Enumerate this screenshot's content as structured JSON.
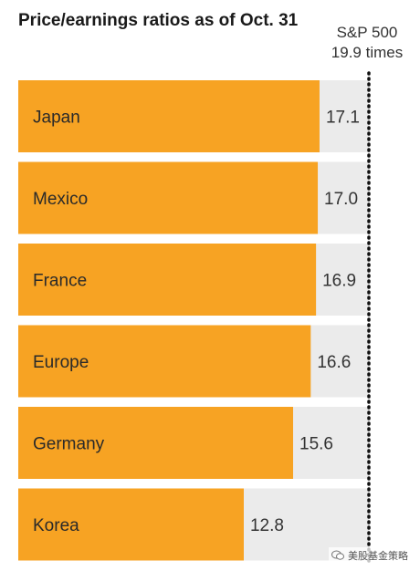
{
  "chart_data": {
    "type": "bar",
    "orientation": "horizontal",
    "title": "Price/earnings ratios as of Oct. 31",
    "categories": [
      "Japan",
      "Mexico",
      "France",
      "Europe",
      "Germany",
      "Korea"
    ],
    "values": [
      17.1,
      17.0,
      16.9,
      16.6,
      15.6,
      12.8
    ],
    "value_labels": [
      "17.1",
      "17.0",
      "16.9",
      "16.6",
      "15.6",
      "12.8"
    ],
    "reference": {
      "label": "S&P 500",
      "value": 19.9,
      "value_label": "19.9 times"
    },
    "xlim": [
      0,
      19.9
    ],
    "grid": false,
    "legend": "none"
  },
  "colors": {
    "bar": "#f7a323",
    "track": "#ebebeb",
    "reference_line": "#111111"
  },
  "watermark": {
    "text": "美股基金策略"
  }
}
